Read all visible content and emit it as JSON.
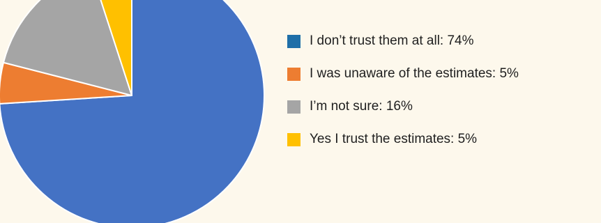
{
  "chart_data": {
    "type": "pie",
    "title": "",
    "slices": [
      {
        "label": "I don’t trust them at all",
        "value": 74,
        "legend_text": "I don’t trust them at all: 74%",
        "pie_color": "#4472c4",
        "legend_color": "#1f6fa8"
      },
      {
        "label": "I was unaware of the estimates",
        "value": 5,
        "legend_text": "I was unaware of the estimates: 5%",
        "pie_color": "#ed7d31",
        "legend_color": "#ed7d31"
      },
      {
        "label": "I’m not sure",
        "value": 16,
        "legend_text": "I’m not sure: 16%",
        "pie_color": "#a5a5a5",
        "legend_color": "#a5a5a5"
      },
      {
        "label": "Yes I trust the estimates",
        "value": 5,
        "legend_text": "Yes I trust the estimates: 5%",
        "pie_color": "#ffc000",
        "legend_color": "#ffc000"
      }
    ],
    "legend_position": "right",
    "background_color": "#fdf8ec"
  }
}
